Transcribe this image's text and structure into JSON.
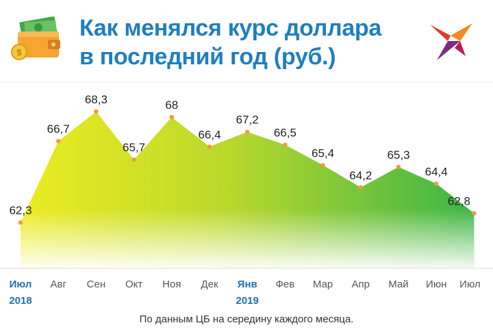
{
  "header": {
    "title_line1": "Как менялся курс доллара",
    "title_line2": "в последний год (руб.)",
    "icon": "wallet-with-money-icon",
    "logo": "bird-logo-icon"
  },
  "chart_data": {
    "type": "area",
    "categories": [
      "Июл",
      "Авг",
      "Сен",
      "Окт",
      "Ноя",
      "Дек",
      "Янв",
      "Фев",
      "Мар",
      "Апр",
      "Май",
      "Июн",
      "Июл"
    ],
    "year_labels": {
      "0": "2018",
      "6": "2019"
    },
    "bold_categories": [
      0,
      6
    ],
    "values": [
      62.3,
      66.7,
      68.3,
      65.7,
      68,
      66.4,
      67.2,
      66.5,
      65.4,
      64.2,
      65.3,
      64.4,
      62.8
    ],
    "value_labels": [
      "62,3",
      "66,7",
      "68,3",
      "65,7",
      "68",
      "66,4",
      "67,2",
      "66,5",
      "65,4",
      "64,2",
      "65,3",
      "64,4",
      "62,8"
    ],
    "ylim": [
      61.6,
      68.3
    ],
    "gradient_colors": [
      "#ecec20",
      "#bcd82c",
      "#3cb547"
    ],
    "point_color": "#f29a3d",
    "title": "",
    "xlabel": "",
    "ylabel": ""
  },
  "footer": {
    "note": "По данным ЦБ на середину каждого месяца."
  }
}
